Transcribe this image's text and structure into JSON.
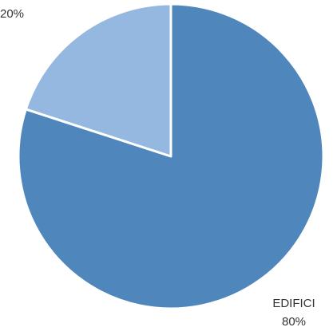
{
  "chart_data": {
    "type": "pie",
    "slices": [
      {
        "name": "EDIFICI",
        "value": 80,
        "pct_label": "80%",
        "color": "#4f87bd"
      },
      {
        "name": "",
        "value": 20,
        "pct_label": "20%",
        "color": "#95b8e0"
      }
    ],
    "start_angle_deg": 0,
    "direction": "clockwise",
    "slice_border_color": "#ffffff",
    "legend": "none"
  }
}
